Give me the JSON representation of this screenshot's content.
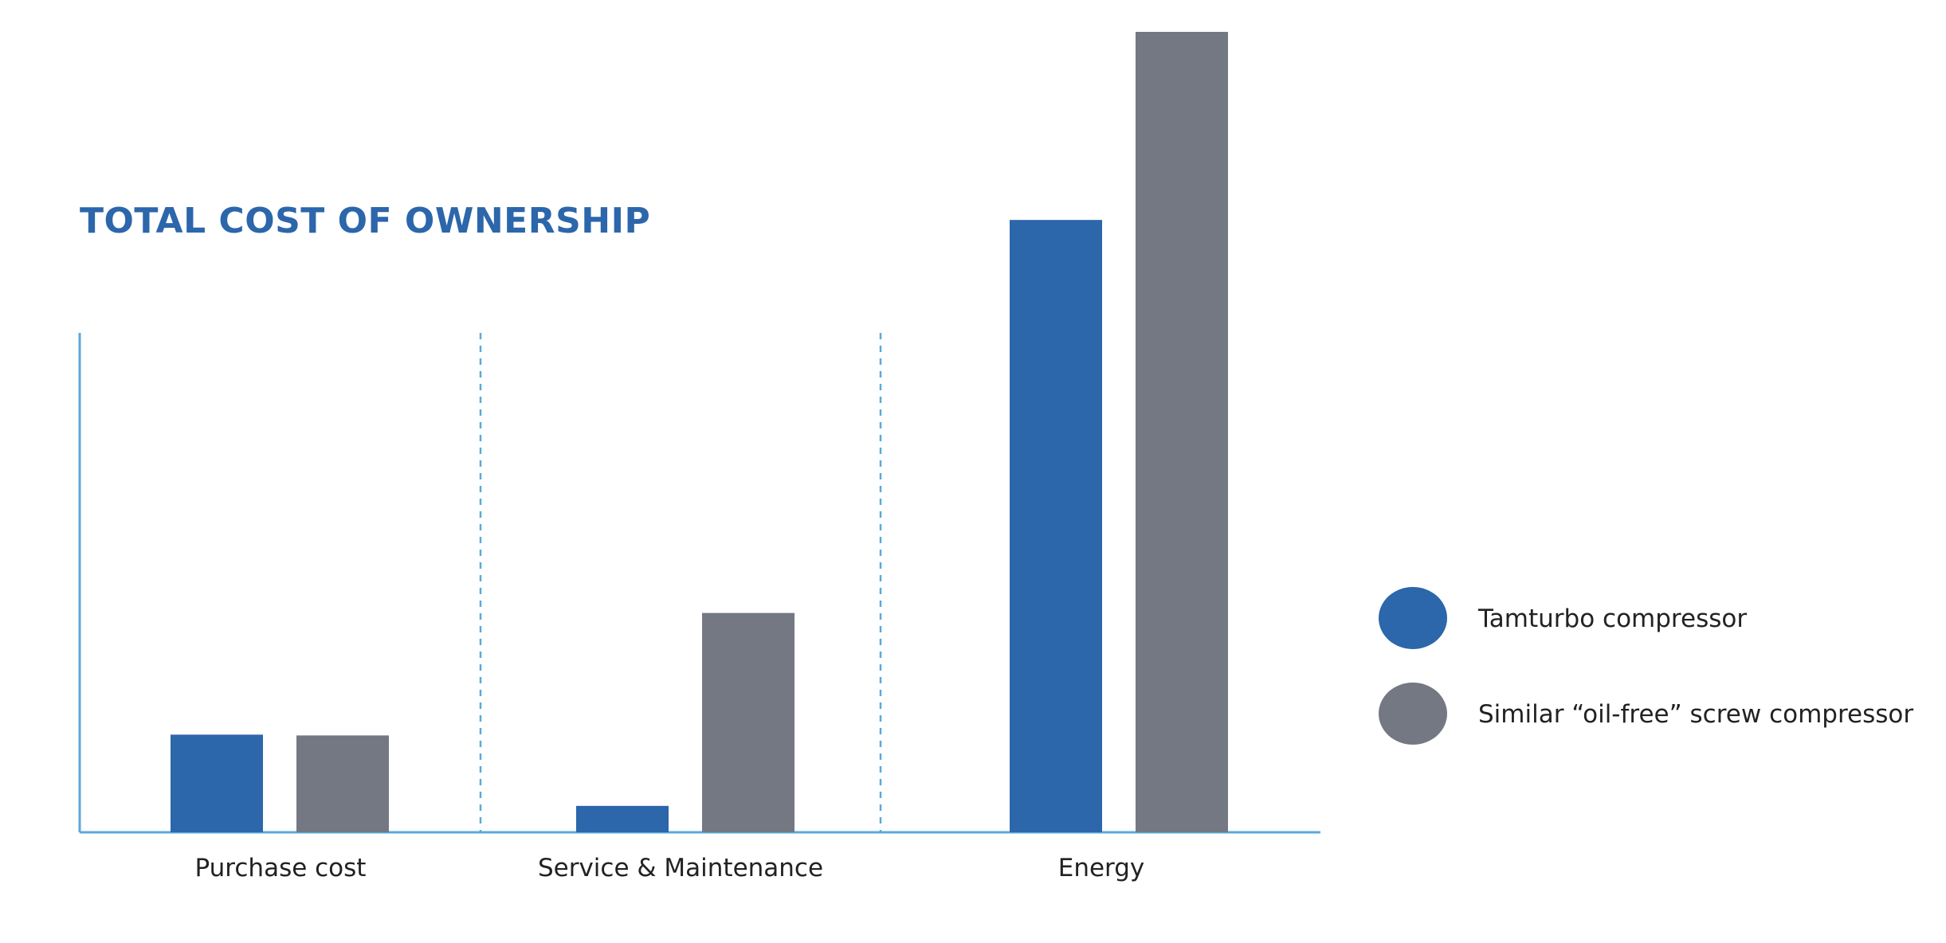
{
  "chart_data": {
    "type": "bar",
    "title": "TOTAL COST OF OWNERSHIP",
    "categories": [
      "Purchase cost",
      "Service & Maintenance",
      "Energy"
    ],
    "series": [
      {
        "name": "Tamturbo compressor",
        "values": [
          122,
          33,
          765
        ]
      },
      {
        "name": "Similar “oil-free” screw compressor",
        "values": [
          121,
          274,
          1000
        ]
      }
    ],
    "xlabel": "",
    "ylabel": "",
    "ylim": [
      0,
      1000
    ],
    "grid": false,
    "legend": "right",
    "colors": {
      "title": "#2c66ab",
      "series": [
        "#2c66ab",
        "#737883"
      ],
      "axis": "#5aaad8",
      "separator": "#5aaad8"
    }
  }
}
